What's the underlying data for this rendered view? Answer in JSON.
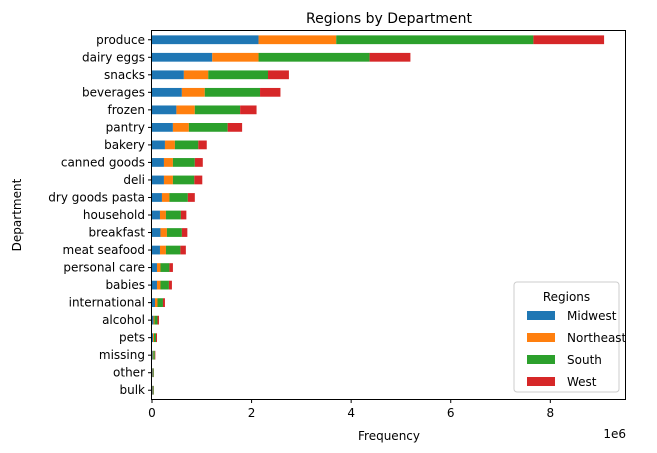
{
  "chart_data": {
    "type": "bar",
    "orientation": "horizontal",
    "stacked": true,
    "title": "Regions by Department",
    "xlabel": "Frequency",
    "ylabel": "Department",
    "x_scale_label": "1e6",
    "xlim": [
      0,
      9.5
    ],
    "x_ticks": [
      "0",
      "2",
      "4",
      "6",
      "8"
    ],
    "grid": false,
    "legend": {
      "title": "Regions",
      "placement": "bottom-right"
    },
    "categories": [
      "produce",
      "dairy eggs",
      "snacks",
      "beverages",
      "frozen",
      "pantry",
      "bakery",
      "canned goods",
      "deli",
      "dry goods pasta",
      "household",
      "breakfast",
      "meat seafood",
      "personal care",
      "babies",
      "international",
      "alcohol",
      "pets",
      "missing",
      "other",
      "bulk"
    ],
    "series": [
      {
        "name": "Midwest",
        "color": "#1f77b4",
        "values": [
          2.14,
          1.21,
          0.64,
          0.6,
          0.49,
          0.42,
          0.26,
          0.24,
          0.24,
          0.2,
          0.16,
          0.17,
          0.16,
          0.1,
          0.1,
          0.06,
          0.03,
          0.02,
          0.015,
          0.01,
          0.01
        ]
      },
      {
        "name": "Northeast",
        "color": "#ff7f0e",
        "values": [
          1.56,
          0.93,
          0.49,
          0.46,
          0.37,
          0.32,
          0.2,
          0.18,
          0.18,
          0.15,
          0.12,
          0.13,
          0.12,
          0.07,
          0.07,
          0.05,
          0.02,
          0.02,
          0.012,
          0.008,
          0.008
        ]
      },
      {
        "name": "South",
        "color": "#2ca02c",
        "values": [
          3.96,
          2.23,
          1.2,
          1.11,
          0.91,
          0.78,
          0.47,
          0.44,
          0.43,
          0.37,
          0.3,
          0.3,
          0.29,
          0.18,
          0.17,
          0.11,
          0.06,
          0.04,
          0.03,
          0.015,
          0.014
        ]
      },
      {
        "name": "West",
        "color": "#d62728",
        "values": [
          1.42,
          0.82,
          0.42,
          0.41,
          0.33,
          0.29,
          0.17,
          0.16,
          0.16,
          0.14,
          0.11,
          0.11,
          0.11,
          0.07,
          0.06,
          0.04,
          0.03,
          0.02,
          0.01,
          0.005,
          0.005
        ]
      }
    ]
  }
}
